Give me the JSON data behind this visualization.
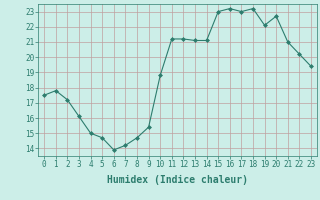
{
  "x": [
    0,
    1,
    2,
    3,
    4,
    5,
    6,
    7,
    8,
    9,
    10,
    11,
    12,
    13,
    14,
    15,
    16,
    17,
    18,
    19,
    20,
    21,
    22,
    23
  ],
  "y": [
    17.5,
    17.8,
    17.2,
    16.1,
    15.0,
    14.7,
    13.9,
    14.2,
    14.7,
    15.4,
    18.8,
    21.2,
    21.2,
    21.1,
    21.1,
    23.0,
    23.2,
    23.0,
    23.2,
    22.1,
    22.7,
    21.0,
    20.2,
    19.4
  ],
  "line_color": "#2d7d6e",
  "marker": "D",
  "marker_size": 2,
  "bg_color": "#cceee8",
  "grid_color": "#c0a0a0",
  "xlabel": "Humidex (Indice chaleur)",
  "ylim": [
    13.5,
    23.5
  ],
  "yticks": [
    14,
    15,
    16,
    17,
    18,
    19,
    20,
    21,
    22,
    23
  ],
  "xticks": [
    0,
    1,
    2,
    3,
    4,
    5,
    6,
    7,
    8,
    9,
    10,
    11,
    12,
    13,
    14,
    15,
    16,
    17,
    18,
    19,
    20,
    21,
    22,
    23
  ],
  "tick_color": "#2d7d6e",
  "label_color": "#2d7d6e",
  "font_size_axis": 5.5,
  "font_size_label": 7
}
